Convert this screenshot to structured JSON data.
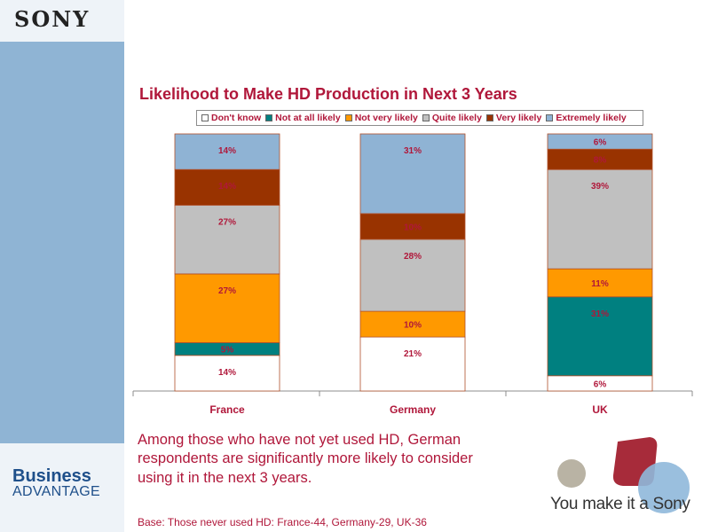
{
  "header": {
    "logo_text": "SONY"
  },
  "sidebar": {
    "logo_line1": "Business",
    "logo_line2": "ADVANTAGE"
  },
  "colors": {
    "accent": "#b0173a",
    "sidebar": "#8fb4d4",
    "dont_know": "#ffffff",
    "not_at_all_likely": "#008080",
    "not_very_likely": "#ff9900",
    "quite_likely": "#c0c0c0",
    "very_likely": "#993300",
    "extremely_likely": "#8fb3d4"
  },
  "chart_data": {
    "type": "bar",
    "stacked": true,
    "percent_stacked": true,
    "title": "Likelihood to Make HD Production in Next 3 Years",
    "categories": [
      "France",
      "Germany",
      "UK"
    ],
    "legend_position": "top",
    "series": [
      {
        "name": "Don't know",
        "color": "#ffffff",
        "values": [
          14,
          21,
          6
        ],
        "labels": [
          "14%",
          "21%",
          "6%"
        ]
      },
      {
        "name": "Not at all likely",
        "color": "#008080",
        "values": [
          5,
          0,
          31
        ],
        "labels": [
          "5%",
          "",
          "31%"
        ]
      },
      {
        "name": "Not very likely",
        "color": "#ff9900",
        "values": [
          27,
          10,
          11
        ],
        "labels": [
          "27%",
          "10%",
          "11%"
        ]
      },
      {
        "name": "Quite likely",
        "color": "#c0c0c0",
        "values": [
          27,
          28,
          39
        ],
        "labels": [
          "27%",
          "28%",
          "39%"
        ]
      },
      {
        "name": "Very likely",
        "color": "#993300",
        "values": [
          14,
          10,
          8
        ],
        "labels": [
          "14%",
          "10%",
          "8%"
        ]
      },
      {
        "name": "Extremely likely",
        "color": "#8fb3d4",
        "values": [
          14,
          31,
          6
        ],
        "labels": [
          "14%",
          "31%",
          "6%"
        ]
      }
    ]
  },
  "summary": "Among those who have not yet used HD, German respondents are significantly more likely to consider using it in the next 3 years.",
  "base_note": "Base: Those never used HD: France-44, Germany-29, UK-36",
  "tagline": "You make it a Sony"
}
